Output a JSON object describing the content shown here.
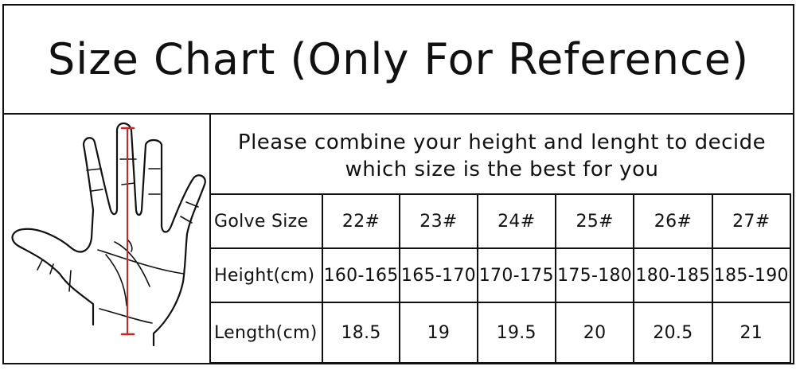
{
  "title": "Size Chart (Only For Reference)",
  "note": [
    "Please combine your height and lenght to decide",
    "which size is the best for you"
  ],
  "table": {
    "rows": [
      {
        "label": "Golve Size",
        "values": [
          "22#",
          "23#",
          "24#",
          "25#",
          "26#",
          "27#"
        ]
      },
      {
        "label": "Height(cm)",
        "values": [
          "160-165",
          "165-170",
          "170-175",
          "175-180",
          "180-185",
          "185-190"
        ]
      },
      {
        "label": "Length(cm)",
        "values": [
          "18.5",
          "19",
          "19.5",
          "20",
          "20.5",
          "21"
        ]
      }
    ]
  },
  "colors": {
    "measure_line": "#c62828",
    "border": "#111111"
  }
}
